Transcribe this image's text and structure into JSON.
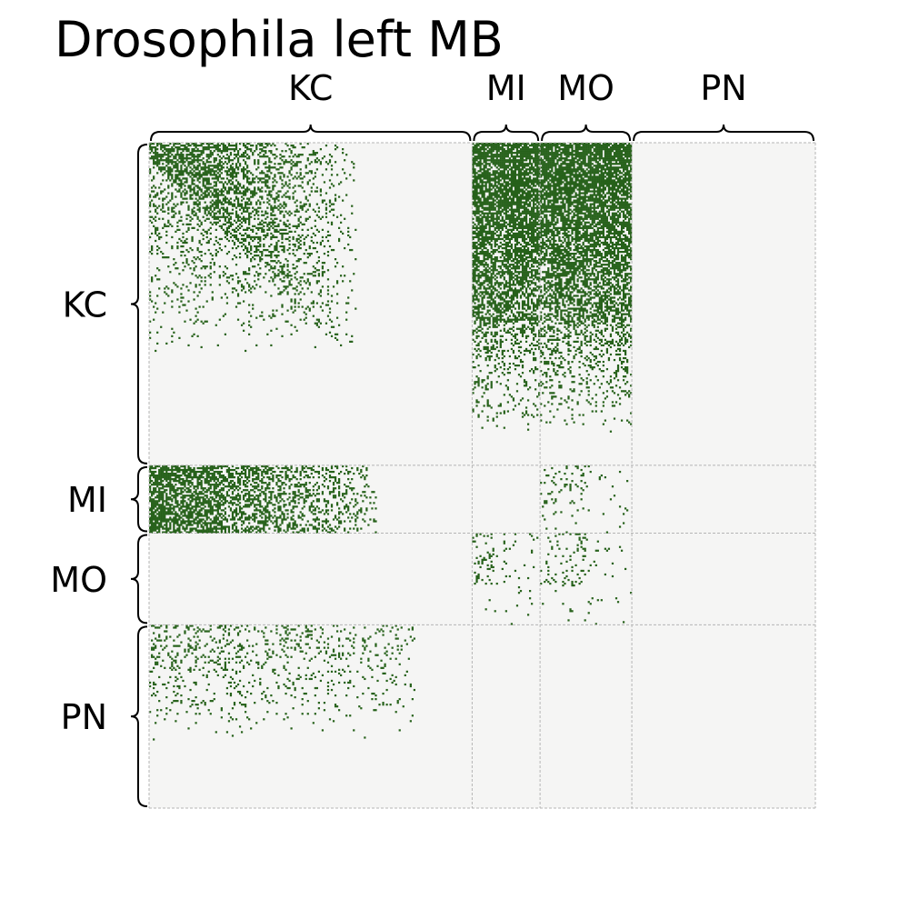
{
  "chart_data": {
    "type": "heatmap",
    "title": "Drosophila left MB",
    "colors": {
      "edge": "#26611a",
      "background": "#f5f5f4",
      "grid": "#b5b5b5"
    },
    "groups": [
      {
        "name": "KC",
        "size": 176
      },
      {
        "name": "MI",
        "size": 37
      },
      {
        "name": "MO",
        "size": 50
      },
      {
        "name": "PN",
        "size": 100
      }
    ],
    "blocks": [
      {
        "source": "KC",
        "target": "KC",
        "density": "upper-triangular, dense"
      },
      {
        "source": "KC",
        "target": "MI",
        "density": "dense"
      },
      {
        "source": "KC",
        "target": "MO",
        "density": "dense"
      },
      {
        "source": "KC",
        "target": "PN",
        "density": "empty"
      },
      {
        "source": "MI",
        "target": "KC",
        "density": "dense"
      },
      {
        "source": "MI",
        "target": "MI",
        "density": "empty"
      },
      {
        "source": "MI",
        "target": "MO",
        "density": "sparse"
      },
      {
        "source": "MI",
        "target": "PN",
        "density": "empty"
      },
      {
        "source": "MO",
        "target": "KC",
        "density": "empty"
      },
      {
        "source": "MO",
        "target": "MI",
        "density": "sparse"
      },
      {
        "source": "MO",
        "target": "MO",
        "density": "sparse"
      },
      {
        "source": "MO",
        "target": "PN",
        "density": "empty"
      },
      {
        "source": "PN",
        "target": "KC",
        "density": "moderate"
      },
      {
        "source": "PN",
        "target": "MI",
        "density": "empty"
      },
      {
        "source": "PN",
        "target": "MO",
        "density": "empty"
      },
      {
        "source": "PN",
        "target": "PN",
        "density": "empty"
      }
    ],
    "legend": "none"
  }
}
